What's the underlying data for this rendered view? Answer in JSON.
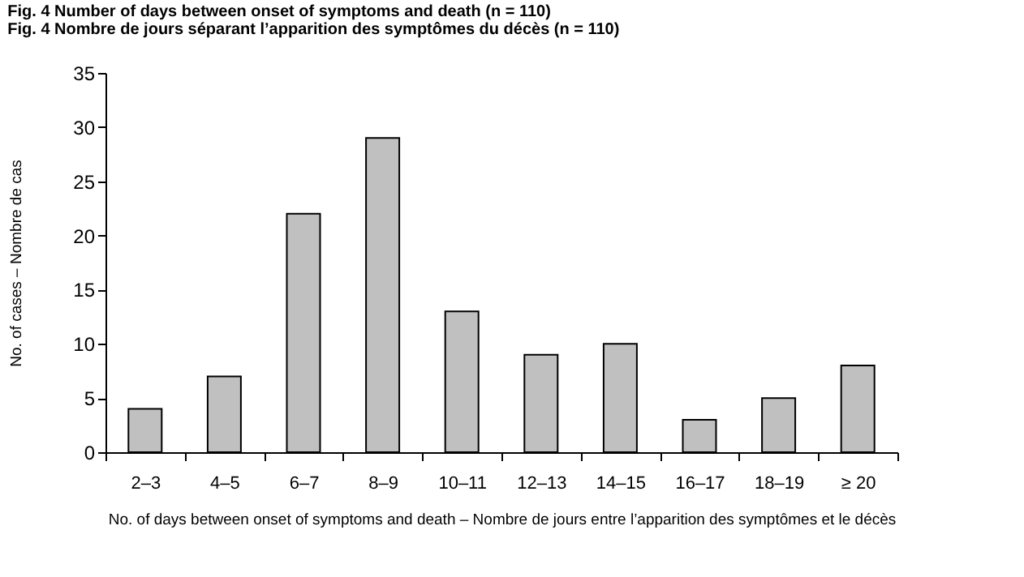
{
  "chart_data": {
    "type": "bar",
    "title": "Fig. 4  Number of days between onset of symptoms and death (n = 110)",
    "subtitle": "Fig. 4  Nombre de jours séparant l’apparition des symptômes du décès (n = 110)",
    "xlabel": "No. of days between onset of symptoms and death – Nombre de jours entre l’apparition des symptômes et le décès",
    "ylabel": "No. of cases – Nombre de cas",
    "categories": [
      "2–3",
      "4–5",
      "6–7",
      "8–9",
      "10–11",
      "12–13",
      "14–15",
      "16–17",
      "18–19",
      "≥ 20"
    ],
    "values": [
      4,
      7,
      22,
      29,
      13,
      9,
      10,
      3,
      5,
      8
    ],
    "color": "#c0c0c0",
    "ylim": [
      0,
      35
    ],
    "yticks": [
      0,
      5,
      10,
      15,
      20,
      25,
      30,
      35
    ],
    "grid": false
  }
}
